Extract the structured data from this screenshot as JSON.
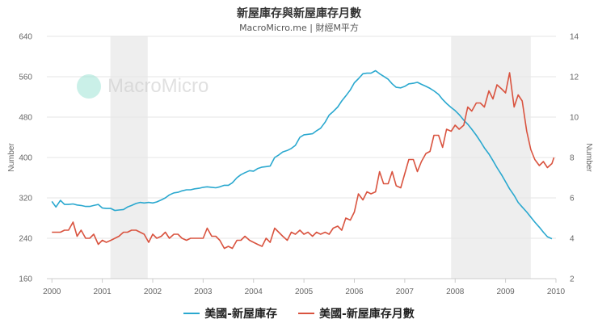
{
  "header": {
    "title": "新屋庫存與新屋庫存月數",
    "subtitle": "MacroMicro.me | 財經M平方"
  },
  "watermark": {
    "text": "MacroMicro"
  },
  "colors": {
    "inventory": "#2aa8cf",
    "months": "#d9533f",
    "recession": "#eeeeee",
    "grid": "#e6e6e6"
  },
  "legend": {
    "inventory_label": "美國-新屋庫存",
    "months_label": "美國-新屋庫存月數"
  },
  "chart_data": {
    "type": "line",
    "left_axis": {
      "title": "Number",
      "range": [
        160,
        640
      ],
      "ticks": [
        "160",
        "240",
        "320",
        "400",
        "480",
        "560",
        "640"
      ]
    },
    "right_axis": {
      "title": "Number",
      "range": [
        2,
        14
      ],
      "ticks": [
        "2",
        "4",
        "6",
        "8",
        "10",
        "12",
        "14"
      ]
    },
    "x_axis": {
      "range": [
        1999.9,
        2010.0
      ],
      "ticks": [
        "2000",
        "2001",
        "2002",
        "2003",
        "2004",
        "2005",
        "2006",
        "2007",
        "2008",
        "2009",
        "2010"
      ]
    },
    "recessions": [
      [
        2001.16,
        2001.9
      ],
      [
        2007.92,
        2009.5
      ]
    ],
    "series": [
      {
        "name": "美國-新屋庫存",
        "axis": "left",
        "points": [
          [
            2000.0,
            313
          ],
          [
            2000.08,
            302
          ],
          [
            2000.17,
            315
          ],
          [
            2000.25,
            307
          ],
          [
            2000.33,
            307
          ],
          [
            2000.42,
            308
          ],
          [
            2000.5,
            306
          ],
          [
            2000.58,
            305
          ],
          [
            2000.67,
            303
          ],
          [
            2000.75,
            303
          ],
          [
            2000.83,
            305
          ],
          [
            2000.92,
            307
          ],
          [
            2001.0,
            300
          ],
          [
            2001.08,
            299
          ],
          [
            2001.17,
            299
          ],
          [
            2001.25,
            295
          ],
          [
            2001.33,
            296
          ],
          [
            2001.42,
            297
          ],
          [
            2001.5,
            302
          ],
          [
            2001.58,
            305
          ],
          [
            2001.67,
            309
          ],
          [
            2001.75,
            311
          ],
          [
            2001.83,
            310
          ],
          [
            2001.92,
            311
          ],
          [
            2002.0,
            310
          ],
          [
            2002.08,
            312
          ],
          [
            2002.17,
            316
          ],
          [
            2002.25,
            320
          ],
          [
            2002.33,
            326
          ],
          [
            2002.42,
            330
          ],
          [
            2002.5,
            331
          ],
          [
            2002.58,
            334
          ],
          [
            2002.67,
            336
          ],
          [
            2002.75,
            336
          ],
          [
            2002.83,
            338
          ],
          [
            2002.92,
            339
          ],
          [
            2003.0,
            341
          ],
          [
            2003.08,
            342
          ],
          [
            2003.17,
            341
          ],
          [
            2003.25,
            340
          ],
          [
            2003.33,
            342
          ],
          [
            2003.42,
            345
          ],
          [
            2003.5,
            345
          ],
          [
            2003.58,
            350
          ],
          [
            2003.67,
            360
          ],
          [
            2003.75,
            366
          ],
          [
            2003.83,
            370
          ],
          [
            2003.92,
            374
          ],
          [
            2004.0,
            373
          ],
          [
            2004.08,
            378
          ],
          [
            2004.17,
            381
          ],
          [
            2004.25,
            382
          ],
          [
            2004.33,
            383
          ],
          [
            2004.42,
            400
          ],
          [
            2004.5,
            405
          ],
          [
            2004.58,
            411
          ],
          [
            2004.67,
            414
          ],
          [
            2004.75,
            418
          ],
          [
            2004.83,
            424
          ],
          [
            2004.92,
            440
          ],
          [
            2005.0,
            445
          ],
          [
            2005.08,
            446
          ],
          [
            2005.17,
            447
          ],
          [
            2005.25,
            453
          ],
          [
            2005.33,
            458
          ],
          [
            2005.42,
            470
          ],
          [
            2005.5,
            484
          ],
          [
            2005.58,
            491
          ],
          [
            2005.67,
            500
          ],
          [
            2005.75,
            512
          ],
          [
            2005.83,
            522
          ],
          [
            2005.92,
            534
          ],
          [
            2006.0,
            548
          ],
          [
            2006.08,
            556
          ],
          [
            2006.17,
            566
          ],
          [
            2006.25,
            567
          ],
          [
            2006.33,
            567
          ],
          [
            2006.42,
            572
          ],
          [
            2006.5,
            566
          ],
          [
            2006.58,
            561
          ],
          [
            2006.67,
            555
          ],
          [
            2006.75,
            546
          ],
          [
            2006.83,
            539
          ],
          [
            2006.92,
            538
          ],
          [
            2007.0,
            541
          ],
          [
            2007.08,
            546
          ],
          [
            2007.17,
            547
          ],
          [
            2007.25,
            549
          ],
          [
            2007.33,
            545
          ],
          [
            2007.42,
            541
          ],
          [
            2007.5,
            537
          ],
          [
            2007.58,
            532
          ],
          [
            2007.67,
            525
          ],
          [
            2007.75,
            515
          ],
          [
            2007.83,
            507
          ],
          [
            2007.92,
            499
          ],
          [
            2008.0,
            493
          ],
          [
            2008.08,
            485
          ],
          [
            2008.17,
            474
          ],
          [
            2008.25,
            466
          ],
          [
            2008.33,
            456
          ],
          [
            2008.42,
            444
          ],
          [
            2008.5,
            432
          ],
          [
            2008.58,
            419
          ],
          [
            2008.67,
            407
          ],
          [
            2008.75,
            394
          ],
          [
            2008.83,
            380
          ],
          [
            2008.92,
            366
          ],
          [
            2009.0,
            352
          ],
          [
            2009.08,
            338
          ],
          [
            2009.17,
            325
          ],
          [
            2009.25,
            311
          ],
          [
            2009.33,
            302
          ],
          [
            2009.42,
            292
          ],
          [
            2009.5,
            282
          ],
          [
            2009.58,
            272
          ],
          [
            2009.67,
            262
          ],
          [
            2009.75,
            252
          ],
          [
            2009.83,
            243
          ],
          [
            2009.92,
            239
          ]
        ]
      },
      {
        "name": "美國-新屋庫存月數",
        "axis": "right",
        "points": [
          [
            2000.0,
            4.3
          ],
          [
            2000.08,
            4.3
          ],
          [
            2000.17,
            4.3
          ],
          [
            2000.25,
            4.4
          ],
          [
            2000.33,
            4.4
          ],
          [
            2000.42,
            4.8
          ],
          [
            2000.5,
            4.1
          ],
          [
            2000.58,
            4.4
          ],
          [
            2000.67,
            4.0
          ],
          [
            2000.75,
            4.0
          ],
          [
            2000.83,
            4.2
          ],
          [
            2000.92,
            3.7
          ],
          [
            2001.0,
            3.9
          ],
          [
            2001.08,
            3.8
          ],
          [
            2001.17,
            3.9
          ],
          [
            2001.25,
            4.0
          ],
          [
            2001.33,
            4.1
          ],
          [
            2001.42,
            4.3
          ],
          [
            2001.5,
            4.3
          ],
          [
            2001.58,
            4.4
          ],
          [
            2001.67,
            4.4
          ],
          [
            2001.75,
            4.3
          ],
          [
            2001.83,
            4.2
          ],
          [
            2001.92,
            3.8
          ],
          [
            2002.0,
            4.2
          ],
          [
            2002.08,
            4.0
          ],
          [
            2002.17,
            4.1
          ],
          [
            2002.25,
            4.3
          ],
          [
            2002.33,
            4.0
          ],
          [
            2002.42,
            4.2
          ],
          [
            2002.5,
            4.2
          ],
          [
            2002.58,
            4.0
          ],
          [
            2002.67,
            3.9
          ],
          [
            2002.75,
            4.0
          ],
          [
            2002.83,
            4.0
          ],
          [
            2002.92,
            4.0
          ],
          [
            2003.0,
            4.0
          ],
          [
            2003.08,
            4.5
          ],
          [
            2003.17,
            4.1
          ],
          [
            2003.25,
            4.1
          ],
          [
            2003.33,
            3.9
          ],
          [
            2003.42,
            3.5
          ],
          [
            2003.5,
            3.6
          ],
          [
            2003.58,
            3.5
          ],
          [
            2003.67,
            3.9
          ],
          [
            2003.75,
            3.9
          ],
          [
            2003.83,
            4.1
          ],
          [
            2003.92,
            3.9
          ],
          [
            2004.0,
            3.8
          ],
          [
            2004.08,
            3.7
          ],
          [
            2004.17,
            3.6
          ],
          [
            2004.25,
            4.0
          ],
          [
            2004.33,
            3.8
          ],
          [
            2004.42,
            4.5
          ],
          [
            2004.5,
            4.3
          ],
          [
            2004.58,
            4.1
          ],
          [
            2004.67,
            3.9
          ],
          [
            2004.75,
            4.3
          ],
          [
            2004.83,
            4.2
          ],
          [
            2004.92,
            4.4
          ],
          [
            2005.0,
            4.2
          ],
          [
            2005.08,
            4.3
          ],
          [
            2005.17,
            4.1
          ],
          [
            2005.25,
            4.3
          ],
          [
            2005.33,
            4.2
          ],
          [
            2005.42,
            4.3
          ],
          [
            2005.5,
            4.2
          ],
          [
            2005.58,
            4.5
          ],
          [
            2005.67,
            4.6
          ],
          [
            2005.75,
            4.4
          ],
          [
            2005.83,
            5.0
          ],
          [
            2005.92,
            4.9
          ],
          [
            2006.0,
            5.3
          ],
          [
            2006.08,
            6.2
          ],
          [
            2006.17,
            5.9
          ],
          [
            2006.25,
            6.3
          ],
          [
            2006.33,
            6.2
          ],
          [
            2006.42,
            6.3
          ],
          [
            2006.5,
            7.3
          ],
          [
            2006.58,
            6.7
          ],
          [
            2006.67,
            6.7
          ],
          [
            2006.75,
            7.3
          ],
          [
            2006.83,
            6.6
          ],
          [
            2006.92,
            6.5
          ],
          [
            2007.0,
            7.2
          ],
          [
            2007.08,
            7.9
          ],
          [
            2007.17,
            7.9
          ],
          [
            2007.25,
            7.3
          ],
          [
            2007.33,
            7.8
          ],
          [
            2007.42,
            8.2
          ],
          [
            2007.5,
            8.3
          ],
          [
            2007.58,
            9.1
          ],
          [
            2007.67,
            9.1
          ],
          [
            2007.75,
            8.5
          ],
          [
            2007.83,
            9.4
          ],
          [
            2007.92,
            9.3
          ],
          [
            2008.0,
            9.6
          ],
          [
            2008.08,
            9.4
          ],
          [
            2008.17,
            9.6
          ],
          [
            2008.25,
            10.5
          ],
          [
            2008.33,
            10.3
          ],
          [
            2008.42,
            10.7
          ],
          [
            2008.5,
            10.7
          ],
          [
            2008.58,
            10.5
          ],
          [
            2008.67,
            11.3
          ],
          [
            2008.75,
            10.9
          ],
          [
            2008.83,
            11.6
          ],
          [
            2008.92,
            11.4
          ],
          [
            2009.0,
            11.2
          ],
          [
            2009.08,
            12.2
          ],
          [
            2009.17,
            10.5
          ],
          [
            2009.25,
            11.1
          ],
          [
            2009.33,
            10.8
          ],
          [
            2009.42,
            9.3
          ],
          [
            2009.5,
            8.4
          ],
          [
            2009.58,
            7.9
          ],
          [
            2009.67,
            7.6
          ],
          [
            2009.75,
            7.8
          ],
          [
            2009.83,
            7.5
          ],
          [
            2009.92,
            7.7
          ],
          [
            2009.96,
            8.0
          ]
        ]
      }
    ]
  }
}
